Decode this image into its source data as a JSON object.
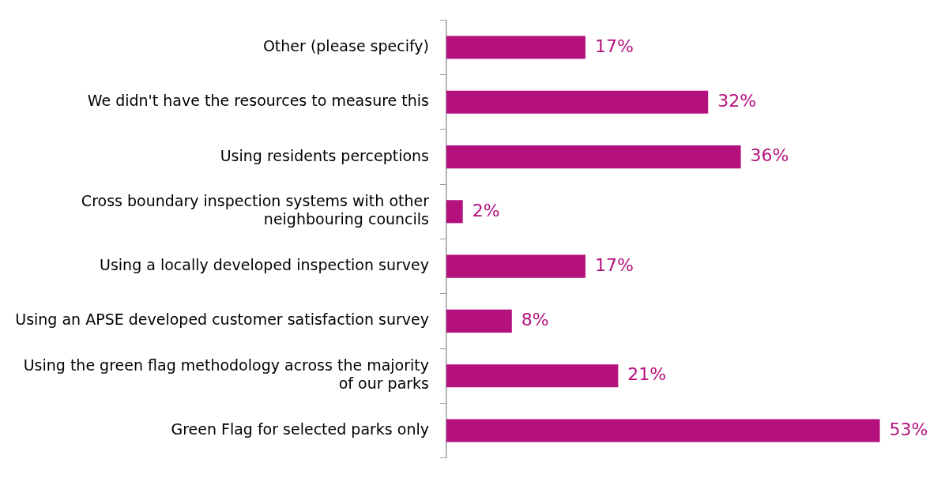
{
  "chart_data": {
    "type": "bar",
    "orientation": "horizontal",
    "categories": [
      "Other (please specify)",
      "We didn't have the resources to measure this",
      "Using residents perceptions",
      "Cross boundary inspection systems with other neighbouring councils",
      "Using a locally developed inspection survey",
      "Using an APSE developed customer satisfaction survey",
      "Using the green flag methodology across the majority of our parks",
      "Green Flag for selected parks only"
    ],
    "values": [
      17,
      32,
      36,
      2,
      17,
      8,
      21,
      53
    ],
    "value_labels": [
      "17%",
      "32%",
      "36%",
      "2%",
      "17%",
      "8%",
      "21%",
      "53%"
    ],
    "color": "#b5117e",
    "grid": false,
    "legend": false,
    "tick_labels": "y"
  }
}
